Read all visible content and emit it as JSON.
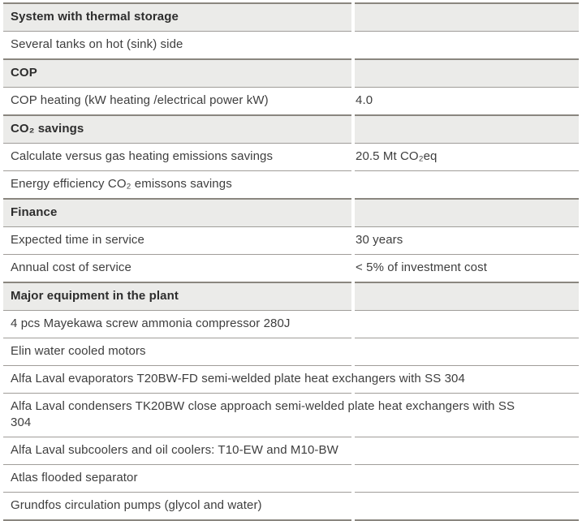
{
  "table": {
    "colors": {
      "header_bg": "#ebebe9",
      "border_dark": "#8a867f",
      "border_light": "#a09d99",
      "header_text": "#2d2d2d",
      "body_text": "#3e3e3e"
    },
    "rows": [
      {
        "type": "header",
        "label": "System with thermal storage",
        "value": ""
      },
      {
        "type": "data",
        "label": "Several tanks on hot (sink) side",
        "value": ""
      },
      {
        "type": "header",
        "label": "COP",
        "value": ""
      },
      {
        "type": "data",
        "label": "COP heating (kW heating /electrical power kW)",
        "value": "4.0"
      },
      {
        "type": "header",
        "label": "CO₂ savings",
        "value": ""
      },
      {
        "type": "data",
        "label": "Calculate versus gas heating emissions savings",
        "value": "20.5 Mt CO₂eq"
      },
      {
        "type": "data",
        "label": "Energy efficiency CO₂ emissons savings",
        "value": ""
      },
      {
        "type": "header",
        "label": "Finance",
        "value": ""
      },
      {
        "type": "data",
        "label": "Expected time in service",
        "value": "30 years"
      },
      {
        "type": "data",
        "label": "Annual cost of service",
        "value": "< 5% of investment cost"
      },
      {
        "type": "header",
        "label": "Major equipment in the plant",
        "value": ""
      },
      {
        "type": "data",
        "label": "4 pcs Mayekawa screw ammonia compressor 280J",
        "value": ""
      },
      {
        "type": "data",
        "label": "Elin water cooled motors",
        "value": ""
      },
      {
        "type": "full",
        "label": "Alfa Laval evaporators T20BW-FD semi-welded plate heat exchangers with SS 304",
        "value": ""
      },
      {
        "type": "full",
        "label": "Alfa Laval condensers TK20BW close approach semi-welded plate heat exchangers with SS 304",
        "value": ""
      },
      {
        "type": "data",
        "label": "Alfa Laval subcoolers and oil coolers: T10-EW and M10-BW",
        "value": ""
      },
      {
        "type": "data",
        "label": "Atlas flooded separator",
        "value": ""
      },
      {
        "type": "data",
        "label": "Grundfos circulation pumps (glycol and water)",
        "value": ""
      }
    ]
  }
}
